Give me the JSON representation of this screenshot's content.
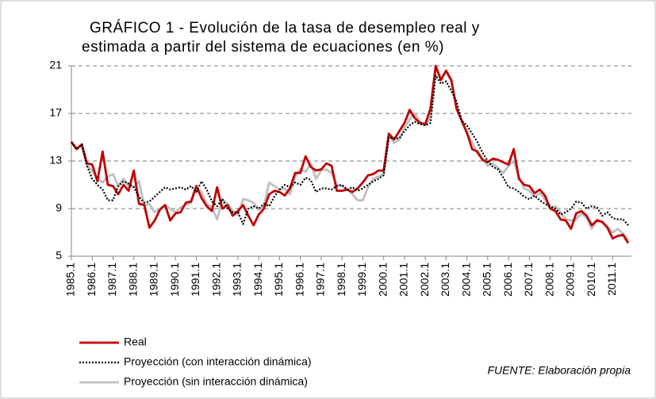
{
  "chart_data": {
    "type": "line",
    "title": [
      "GRÁFICO 1 - Evolución de la tasa de desempleo real y",
      "estimada a partir del sistema de ecuaciones (en %)"
    ],
    "source": "FUENTE: Elaboración propia",
    "categories": [
      "1985.1",
      null,
      null,
      null,
      "1986.1",
      null,
      null,
      null,
      "1987.1",
      null,
      null,
      null,
      "1988.1",
      null,
      null,
      null,
      "1989.1",
      null,
      null,
      null,
      "1990.1",
      null,
      null,
      null,
      "1991.1",
      null,
      null,
      null,
      "1992.1",
      null,
      null,
      null,
      "1993.1",
      null,
      null,
      null,
      "1994.1",
      null,
      null,
      null,
      "1995.1",
      null,
      null,
      null,
      "1996.1",
      null,
      null,
      null,
      "1997.1",
      null,
      null,
      null,
      "1998.1",
      null,
      null,
      null,
      "1999.1",
      null,
      null,
      null,
      "2000.1",
      null,
      null,
      null,
      "2001.1",
      null,
      null,
      null,
      "2002.1",
      null,
      null,
      null,
      "2003.1",
      null,
      null,
      null,
      "2004.1",
      null,
      null,
      null,
      "2005.1",
      null,
      null,
      null,
      "2006.1",
      null,
      null,
      null,
      "2007.1",
      null,
      null,
      null,
      "2008.1",
      null,
      null,
      null,
      "2009.1",
      null,
      null,
      null,
      "2010.1",
      null,
      null,
      null,
      "2011.1",
      null,
      null,
      null
    ],
    "series": [
      {
        "name": "Real",
        "color": "#c00000",
        "style": "solid",
        "values": [
          14.6,
          14.0,
          14.4,
          12.8,
          12.7,
          11.3,
          13.8,
          11.0,
          10.9,
          10.2,
          11.0,
          10.5,
          12.2,
          9.4,
          9.3,
          7.4,
          8.0,
          8.9,
          9.3,
          8.0,
          8.6,
          8.7,
          9.5,
          9.6,
          10.9,
          9.9,
          9.2,
          8.8,
          10.8,
          9.0,
          9.3,
          8.4,
          8.8,
          9.3,
          8.4,
          7.6,
          8.5,
          9.0,
          10.2,
          10.5,
          10.4,
          10.1,
          10.7,
          12.0,
          12.0,
          13.4,
          12.5,
          12.2,
          12.3,
          12.8,
          12.6,
          10.5,
          10.5,
          10.6,
          10.4,
          10.7,
          11.2,
          11.8,
          11.9,
          12.2,
          12.2,
          15.3,
          14.8,
          15.5,
          16.2,
          17.3,
          16.6,
          16.2,
          16.1,
          17.4,
          21.0,
          19.8,
          20.6,
          19.8,
          17.4,
          16.4,
          15.4,
          14.0,
          13.8,
          13.1,
          12.9,
          13.2,
          13.1,
          12.9,
          12.7,
          14.0,
          11.5,
          11.0,
          10.9,
          10.3,
          10.6,
          10.1,
          9.0,
          8.8,
          8.1,
          8.0,
          7.3,
          8.6,
          8.8,
          8.4,
          7.6,
          8.0,
          7.9,
          7.4,
          6.5,
          6.7,
          6.8,
          6.1
        ]
      },
      {
        "name": "Proyección (con interacción dinámica)",
        "color": "#000000",
        "style": "dotted",
        "values": [
          14.6,
          14.0,
          14.4,
          12.6,
          11.5,
          11.0,
          10.6,
          9.7,
          9.7,
          10.9,
          11.3,
          11.1,
          10.8,
          10.0,
          9.5,
          9.6,
          10.0,
          10.4,
          10.8,
          10.6,
          10.7,
          10.8,
          10.6,
          10.9,
          10.4,
          11.3,
          10.6,
          9.6,
          9.2,
          9.8,
          9.0,
          8.7,
          8.7,
          7.7,
          9.0,
          9.2,
          9.0,
          9.4,
          9.2,
          10.0,
          10.6,
          11.0,
          10.8,
          11.2,
          11.0,
          11.6,
          11.4,
          10.4,
          10.7,
          10.7,
          10.6,
          10.9,
          11.0,
          10.6,
          10.8,
          10.5,
          10.7,
          11.0,
          11.3,
          11.5,
          11.8,
          15.0,
          14.9,
          14.9,
          15.5,
          16.0,
          16.3,
          16.1,
          16.0,
          16.2,
          20.2,
          19.5,
          19.7,
          18.9,
          18.0,
          16.4,
          16.0,
          15.3,
          14.6,
          13.7,
          13.0,
          12.5,
          12.3,
          11.6,
          10.8,
          10.7,
          10.4,
          10.0,
          9.8,
          10.1,
          9.7,
          9.4,
          9.2,
          9.0,
          8.5,
          8.7,
          9.0,
          9.6,
          9.5,
          9.0,
          9.2,
          9.1,
          8.4,
          8.7,
          8.2,
          8.1,
          8.1,
          7.6
        ]
      },
      {
        "name": "Proyección (sin interacción dinámica)",
        "color": "#bfbfbf",
        "style": "solid",
        "values": [
          14.6,
          14.1,
          14.3,
          12.6,
          12.2,
          11.5,
          11.2,
          11.7,
          11.9,
          10.9,
          11.5,
          10.9,
          10.8,
          11.3,
          9.3,
          9.4,
          8.7,
          9.0,
          9.3,
          9.0,
          8.7,
          9.1,
          9.3,
          9.5,
          10.8,
          10.4,
          9.4,
          9.1,
          8.1,
          9.8,
          9.4,
          8.8,
          8.5,
          9.8,
          9.7,
          9.5,
          8.9,
          9.2,
          11.2,
          10.9,
          10.6,
          10.7,
          10.2,
          11.7,
          12.3,
          12.1,
          12.8,
          11.5,
          12.2,
          12.3,
          12.0,
          11.0,
          10.9,
          10.6,
          10.2,
          9.7,
          9.7,
          10.8,
          11.5,
          11.7,
          11.9,
          15.2,
          14.5,
          14.8,
          15.8,
          16.5,
          17.0,
          16.3,
          16.0,
          16.7,
          20.9,
          19.9,
          20.5,
          19.7,
          17.6,
          16.3,
          15.3,
          14.6,
          13.6,
          13.2,
          12.6,
          12.8,
          12.4,
          12.0,
          12.6,
          13.0,
          11.7,
          10.7,
          10.5,
          10.0,
          10.3,
          9.8,
          9.0,
          9.2,
          8.7,
          8.1,
          8.0,
          8.1,
          8.6,
          8.2,
          7.3,
          8.1,
          7.8,
          7.5,
          7.0,
          7.3,
          6.9,
          6.3
        ]
      }
    ],
    "ylim": [
      5,
      21
    ],
    "yticks": [
      5,
      9,
      13,
      17,
      21
    ],
    "grid": true,
    "legend": "bottom-left"
  }
}
